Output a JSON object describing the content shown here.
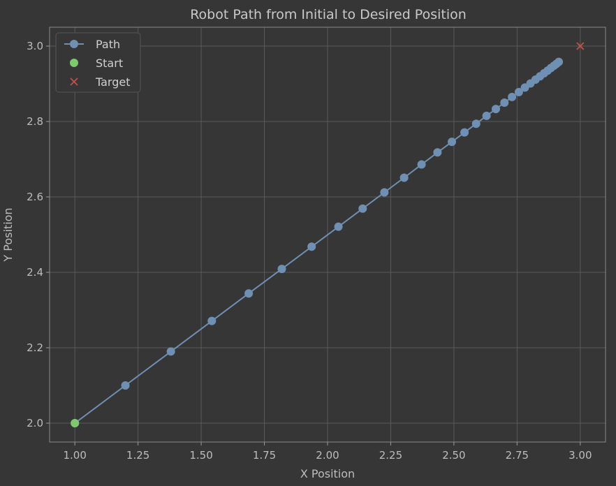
{
  "chart_data": {
    "type": "line",
    "title": "Robot Path from Initial to Desired Position",
    "xlabel": "X Position",
    "ylabel": "Y Position",
    "xlim": [
      0.9,
      3.1
    ],
    "ylim": [
      1.95,
      3.05
    ],
    "xticks": [
      "1.00",
      "1.25",
      "1.50",
      "1.75",
      "2.00",
      "2.25",
      "2.50",
      "2.75",
      "3.00"
    ],
    "yticks": [
      "2.0",
      "2.2",
      "2.4",
      "2.6",
      "2.8",
      "3.0"
    ],
    "grid": true,
    "legend_position": "top-left",
    "series": [
      {
        "name": "Path",
        "color": "#6f8fb3",
        "marker": "circle",
        "x": [
          1.0,
          1.2,
          1.38,
          1.542,
          1.688,
          1.819,
          1.937,
          2.043,
          2.139,
          2.225,
          2.303,
          2.372,
          2.435,
          2.492,
          2.542,
          2.588,
          2.629,
          2.666,
          2.7,
          2.73,
          2.757,
          2.781,
          2.803,
          2.823,
          2.841,
          2.857,
          2.871,
          2.884,
          2.896,
          2.906,
          2.915
        ],
        "y": [
          2.0,
          2.1,
          2.19,
          2.271,
          2.344,
          2.409,
          2.468,
          2.521,
          2.569,
          2.612,
          2.651,
          2.686,
          2.718,
          2.746,
          2.771,
          2.794,
          2.815,
          2.833,
          2.85,
          2.865,
          2.878,
          2.89,
          2.901,
          2.911,
          2.92,
          2.928,
          2.935,
          2.942,
          2.948,
          2.953,
          2.958
        ]
      },
      {
        "name": "Start",
        "color": "#7fc86e",
        "marker": "circle",
        "x": [
          1.0
        ],
        "y": [
          2.0
        ]
      },
      {
        "name": "Target",
        "color": "#c0534d",
        "marker": "x",
        "x": [
          3.0
        ],
        "y": [
          3.0
        ]
      }
    ]
  }
}
